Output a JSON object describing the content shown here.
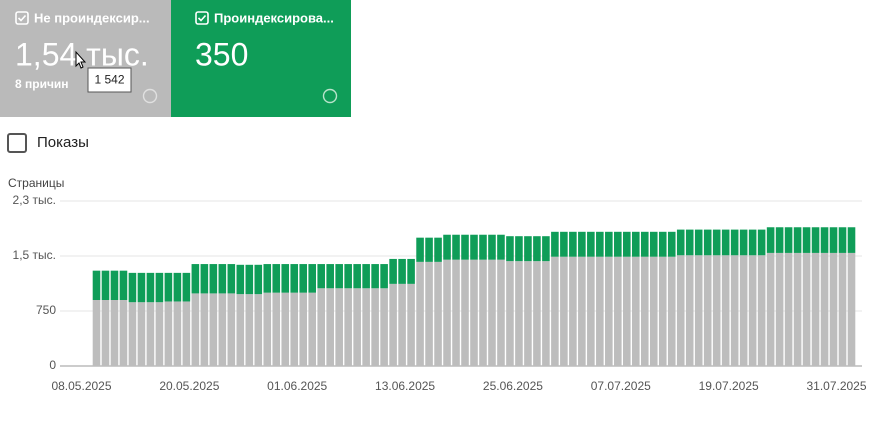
{
  "cards": [
    {
      "label": "Не проиндексир...",
      "value": "1,54 тыс.",
      "note": "8 причин",
      "tooltip": "1 542"
    },
    {
      "label": "Проиндексирова...",
      "value": "350"
    }
  ],
  "toggle": "Показы",
  "chart_data": {
    "type": "bar",
    "stacked": true,
    "y_label": "Страницы",
    "categories": [
      "08.05.2025",
      null,
      null,
      null,
      null,
      null,
      null,
      null,
      null,
      null,
      null,
      null,
      "20.05.2025",
      null,
      null,
      null,
      null,
      null,
      null,
      null,
      null,
      null,
      null,
      null,
      "01.06.2025",
      null,
      null,
      null,
      null,
      null,
      null,
      null,
      null,
      null,
      null,
      null,
      "13.06.2025",
      null,
      null,
      null,
      null,
      null,
      null,
      null,
      null,
      null,
      null,
      null,
      "25.06.2025",
      null,
      null,
      null,
      null,
      null,
      null,
      null,
      null,
      null,
      null,
      null,
      "07.07.2025",
      null,
      null,
      null,
      null,
      null,
      null,
      null,
      null,
      null,
      null,
      null,
      "19.07.2025",
      null,
      null,
      null,
      null,
      null,
      null,
      null,
      null,
      null,
      null,
      null,
      "31.07.2025"
    ],
    "series": [
      {
        "name": "Не проиндексированы",
        "color": "#bdbdbd",
        "values": [
          900,
          900,
          900,
          900,
          870,
          870,
          870,
          870,
          880,
          880,
          880,
          990,
          990,
          990,
          990,
          990,
          980,
          980,
          980,
          1000,
          1000,
          1000,
          1000,
          1000,
          1000,
          1060,
          1060,
          1060,
          1060,
          1060,
          1060,
          1060,
          1060,
          1120,
          1120,
          1120,
          1420,
          1420,
          1420,
          1450,
          1450,
          1450,
          1450,
          1450,
          1450,
          1450,
          1430,
          1430,
          1430,
          1430,
          1430,
          1490,
          1490,
          1490,
          1490,
          1490,
          1490,
          1490,
          1490,
          1490,
          1490,
          1490,
          1490,
          1490,
          1490,
          1510,
          1510,
          1510,
          1510,
          1510,
          1510,
          1510,
          1510,
          1510,
          1510,
          1542,
          1542,
          1542,
          1542,
          1542,
          1542,
          1542,
          1542,
          1542,
          1542
        ]
      },
      {
        "name": "Проиндексированы",
        "color": "#0f9d58",
        "values": [
          400,
          400,
          400,
          400,
          400,
          400,
          400,
          400,
          390,
          390,
          390,
          400,
          400,
          400,
          400,
          400,
          400,
          400,
          400,
          390,
          390,
          390,
          390,
          390,
          390,
          330,
          330,
          330,
          330,
          330,
          330,
          330,
          330,
          340,
          340,
          340,
          330,
          330,
          330,
          340,
          340,
          340,
          340,
          340,
          340,
          340,
          340,
          340,
          340,
          340,
          340,
          340,
          340,
          340,
          340,
          340,
          340,
          340,
          340,
          340,
          340,
          340,
          340,
          340,
          340,
          350,
          350,
          350,
          350,
          350,
          350,
          350,
          350,
          350,
          350,
          350,
          350,
          350,
          350,
          350,
          350,
          350,
          350,
          350,
          350
        ]
      }
    ],
    "ylim": [
      0,
      2250
    ],
    "yticks": [
      0,
      750,
      {
        "value": 1500,
        "label": "1,5 тыс."
      },
      {
        "value": 2250,
        "label": "2,3 тыс."
      }
    ],
    "grid": true
  }
}
